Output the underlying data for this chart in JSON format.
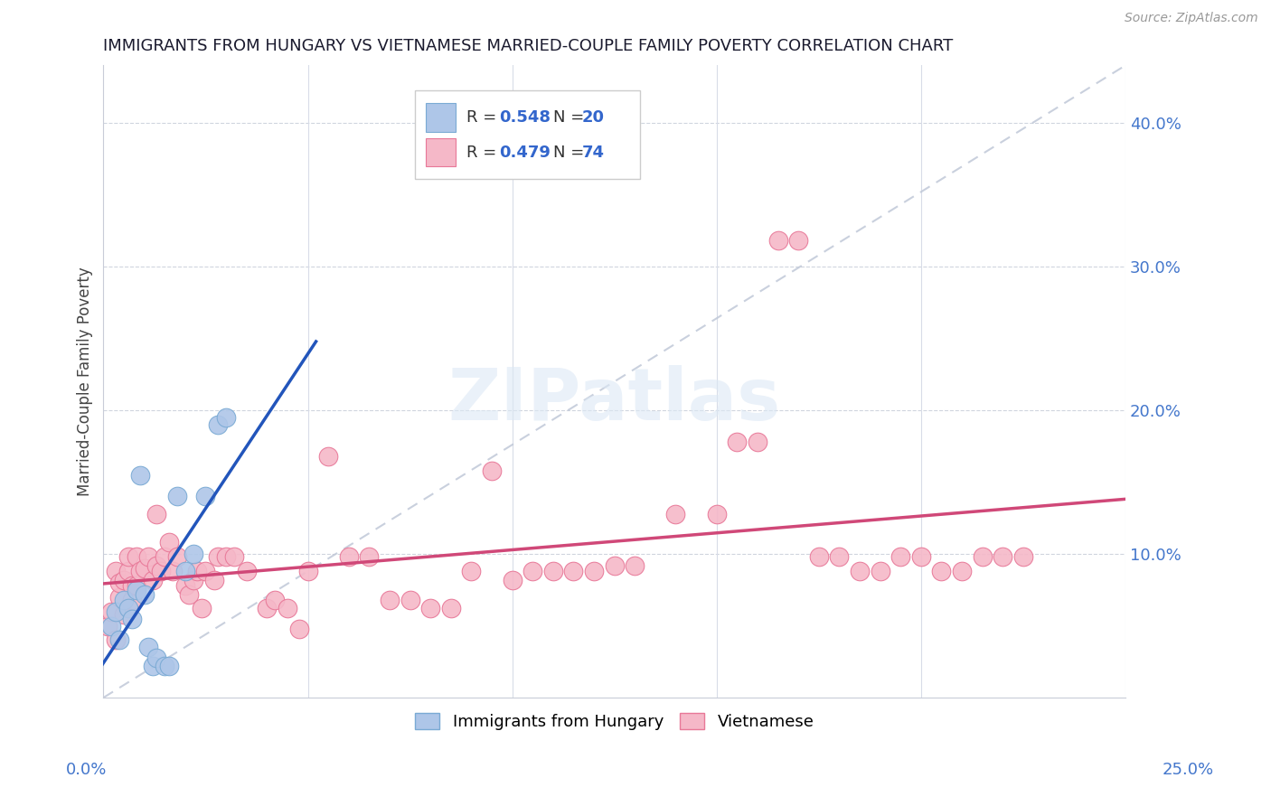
{
  "title": "IMMIGRANTS FROM HUNGARY VS VIETNAMESE MARRIED-COUPLE FAMILY POVERTY CORRELATION CHART",
  "source": "Source: ZipAtlas.com",
  "ylabel": "Married-Couple Family Poverty",
  "right_yticks": [
    "40.0%",
    "30.0%",
    "20.0%",
    "10.0%"
  ],
  "right_ytick_vals": [
    0.4,
    0.3,
    0.2,
    0.1
  ],
  "xlim": [
    0.0,
    0.25
  ],
  "ylim": [
    0.0,
    0.44
  ],
  "hungary_color": "#aec6e8",
  "vietnamese_color": "#f5b8c8",
  "hungary_edge": "#7aaad4",
  "vietnamese_edge": "#e87898",
  "trendline_hungary_color": "#2255bb",
  "trendline_vietnamese_color": "#d04878",
  "diagonal_color": "#c0c8d8",
  "background_color": "#ffffff",
  "hun_r": 0.548,
  "vie_r": 0.479,
  "hun_n": 20,
  "vie_n": 74,
  "hungary_x": [
    0.002,
    0.003,
    0.004,
    0.005,
    0.006,
    0.007,
    0.008,
    0.009,
    0.01,
    0.011,
    0.012,
    0.013,
    0.015,
    0.016,
    0.018,
    0.02,
    0.022,
    0.025,
    0.028,
    0.03
  ],
  "hungary_y": [
    0.05,
    0.06,
    0.04,
    0.068,
    0.062,
    0.055,
    0.075,
    0.155,
    0.072,
    0.035,
    0.022,
    0.028,
    0.022,
    0.022,
    0.14,
    0.088,
    0.1,
    0.14,
    0.19,
    0.195
  ],
  "vietnamese_x": [
    0.001,
    0.002,
    0.003,
    0.003,
    0.004,
    0.004,
    0.005,
    0.005,
    0.006,
    0.006,
    0.007,
    0.007,
    0.008,
    0.008,
    0.009,
    0.01,
    0.011,
    0.012,
    0.013,
    0.013,
    0.014,
    0.015,
    0.016,
    0.017,
    0.018,
    0.02,
    0.021,
    0.022,
    0.023,
    0.024,
    0.025,
    0.027,
    0.028,
    0.03,
    0.032,
    0.035,
    0.04,
    0.042,
    0.045,
    0.048,
    0.05,
    0.055,
    0.06,
    0.065,
    0.07,
    0.075,
    0.08,
    0.085,
    0.09,
    0.095,
    0.1,
    0.105,
    0.11,
    0.115,
    0.12,
    0.125,
    0.13,
    0.14,
    0.15,
    0.155,
    0.16,
    0.165,
    0.17,
    0.175,
    0.18,
    0.185,
    0.19,
    0.195,
    0.2,
    0.205,
    0.21,
    0.215,
    0.22,
    0.225
  ],
  "vietnamese_y": [
    0.05,
    0.06,
    0.04,
    0.088,
    0.07,
    0.08,
    0.058,
    0.082,
    0.088,
    0.098,
    0.068,
    0.078,
    0.078,
    0.098,
    0.088,
    0.09,
    0.098,
    0.082,
    0.092,
    0.128,
    0.088,
    0.098,
    0.108,
    0.088,
    0.098,
    0.078,
    0.072,
    0.082,
    0.088,
    0.062,
    0.088,
    0.082,
    0.098,
    0.098,
    0.098,
    0.088,
    0.062,
    0.068,
    0.062,
    0.048,
    0.088,
    0.168,
    0.098,
    0.098,
    0.068,
    0.068,
    0.062,
    0.062,
    0.088,
    0.158,
    0.082,
    0.088,
    0.088,
    0.088,
    0.088,
    0.092,
    0.092,
    0.128,
    0.128,
    0.178,
    0.178,
    0.318,
    0.318,
    0.098,
    0.098,
    0.088,
    0.088,
    0.098,
    0.098,
    0.088,
    0.088,
    0.098,
    0.098,
    0.098
  ]
}
